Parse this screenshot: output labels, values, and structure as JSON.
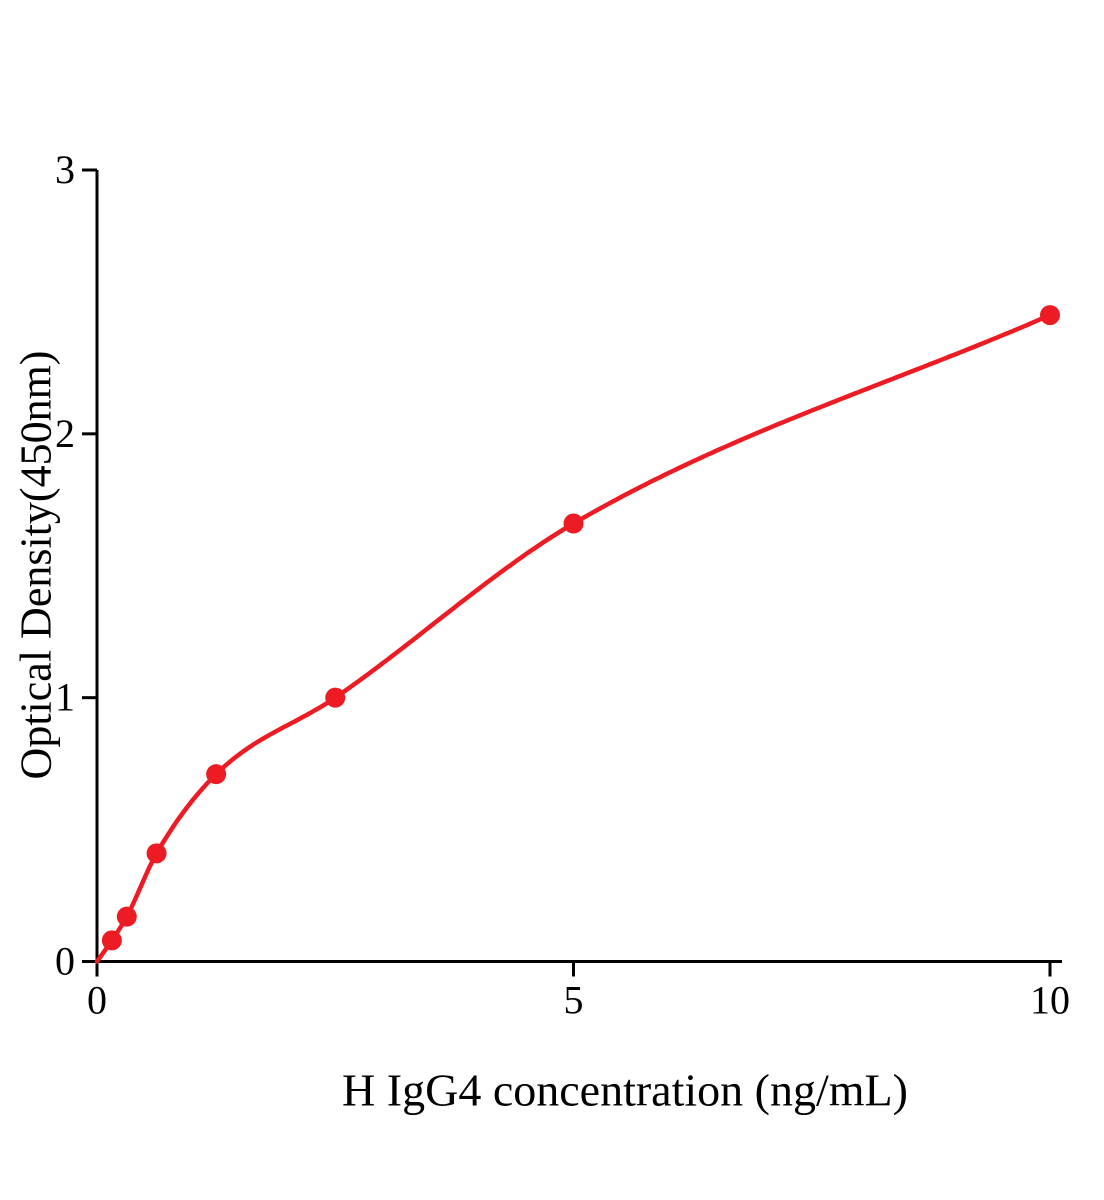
{
  "chart_data": {
    "type": "scatter",
    "title": "",
    "xlabel": "H IgG4 concentration (ng/mL)",
    "ylabel": "Optical Density(450nm)",
    "x": [
      0.156,
      0.3125,
      0.625,
      1.25,
      2.5,
      5,
      10
    ],
    "y": [
      0.08,
      0.17,
      0.41,
      0.71,
      1.0,
      1.66,
      2.45
    ],
    "fit": "smooth curve through points starting at origin",
    "xlim": [
      0,
      10
    ],
    "ylim": [
      0,
      3
    ],
    "xticks": [
      0,
      5,
      10
    ],
    "yticks": [
      0,
      1,
      2,
      3
    ],
    "grid": false,
    "legend": "none",
    "marker_color": "#ed1c24",
    "line_color": "#ed1c24",
    "axis_color": "#000000"
  }
}
